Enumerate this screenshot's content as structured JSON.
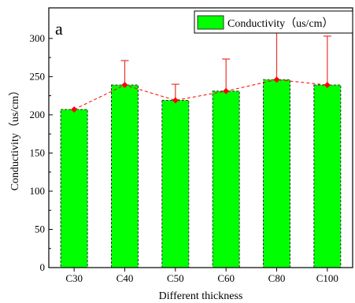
{
  "colors": {
    "bar_fill": "#00ff00",
    "bar_edge": "#333333",
    "error_bar": "#e8312f",
    "line_and_markers": "#ff0000",
    "axis": "#000000"
  },
  "chart_data": {
    "type": "bar",
    "panel_label": "a",
    "categories": [
      "C30",
      "C40",
      "C50",
      "C60",
      "C80",
      "C100"
    ],
    "series": [
      {
        "name": "Conductivity（us/cm）",
        "values": [
          207,
          239,
          219,
          231,
          246,
          239
        ],
        "error_plus": [
          0,
          32,
          21,
          42,
          70,
          64
        ]
      }
    ],
    "overlay": "dashed line with diamond markers connecting bar tops",
    "xlabel": "Different thickness",
    "ylabel": "Conductivity（us/cm）",
    "ylim": [
      0,
      340
    ],
    "yticks": [
      "0",
      "50",
      "100",
      "150",
      "200",
      "250",
      "300"
    ],
    "grid": false,
    "legend_position": "top-right"
  }
}
